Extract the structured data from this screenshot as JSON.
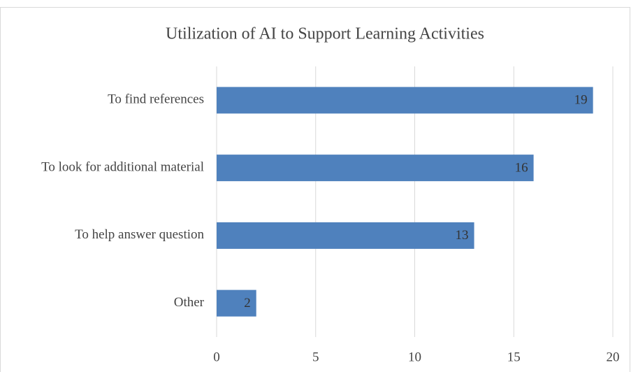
{
  "chart_data": {
    "type": "bar",
    "orientation": "horizontal",
    "title": "Utilization of AI to Support Learning Activities",
    "categories": [
      "To find references",
      "To look for additional material",
      "To help answer question",
      "Other"
    ],
    "values": [
      19,
      16,
      13,
      2
    ],
    "color": "#4f81bd",
    "xlim": [
      0,
      20
    ],
    "xticks": [
      0,
      5,
      10,
      15,
      20
    ],
    "grid": true
  }
}
